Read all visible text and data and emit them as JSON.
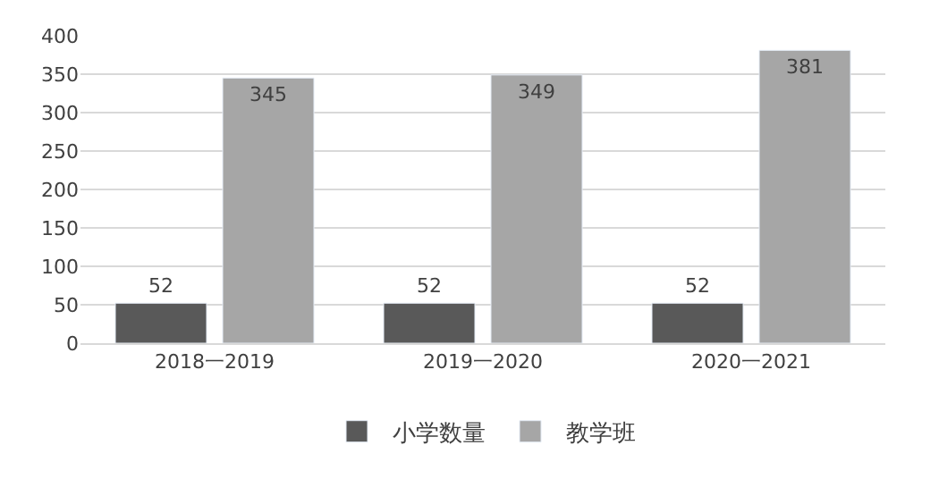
{
  "chart_data": {
    "type": "bar",
    "categories": [
      "2018一2019",
      "2019一2020",
      "2020一2021"
    ],
    "series": [
      {
        "name": "小学数量",
        "color": "#595959",
        "values": [
          52,
          52,
          52
        ]
      },
      {
        "name": "教学班",
        "color": "#a6a6a6",
        "values": [
          345,
          349,
          381
        ]
      }
    ],
    "ylim": [
      0,
      400
    ],
    "yticks": [
      0,
      50,
      100,
      150,
      200,
      250,
      300,
      350,
      400
    ],
    "grid": "y",
    "legend": "bottom",
    "data_labels": true
  }
}
